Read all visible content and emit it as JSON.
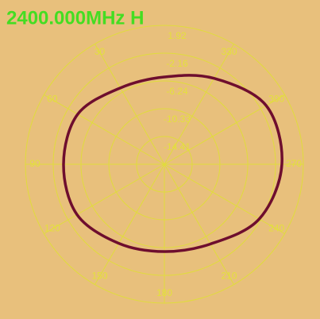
{
  "chart_data": {
    "type": "polar",
    "title": "2400.000MHz  H",
    "theta": [
      0,
      30,
      60,
      90,
      120,
      150,
      180,
      210,
      240,
      270,
      300,
      330
    ],
    "values": [
      -5.66,
      -5.54,
      -3.79,
      -3.68,
      -3.68,
      -5.08,
      -5.66,
      -4.96,
      -2.4,
      -1.23,
      -1.23,
      -3.91
    ],
    "color": "#6e0e2e",
    "rlim": [
      -18.49,
      1.92
    ],
    "rticks": [
      1.92,
      -2.16,
      -6.24,
      -10.33,
      -14.41
    ],
    "thetaticks": [
      30,
      60,
      90,
      120,
      150,
      180,
      210,
      240,
      270,
      300,
      330
    ],
    "grid": true
  }
}
